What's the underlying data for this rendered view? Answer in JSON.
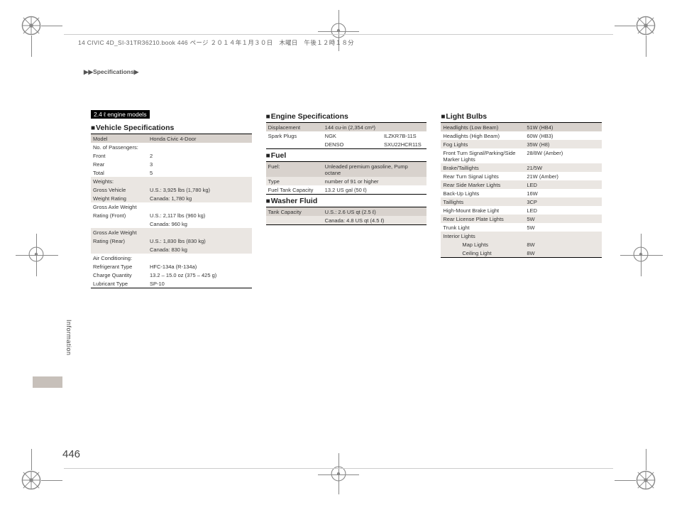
{
  "meta": {
    "bookline": "14 CIVIC 4D_SI-31TR36210.book  446 ページ  ２０１４年１月３０日　木曜日　午後１２時１８分",
    "breadcrumb": "▶▶Specifications▶",
    "page_number": "446",
    "side_label": "Information"
  },
  "col1": {
    "badge": "2.4 ℓ engine models",
    "title": "Vehicle Specifications",
    "rows": [
      {
        "shade": "header",
        "c": [
          "Model",
          "Honda Civic 4-Door"
        ]
      },
      {
        "shade": "",
        "c": [
          "No. of Passengers:",
          ""
        ]
      },
      {
        "shade": "",
        "c": [
          "Front",
          "2"
        ]
      },
      {
        "shade": "",
        "c": [
          "Rear",
          "3"
        ]
      },
      {
        "shade": "",
        "c": [
          "Total",
          "5"
        ]
      },
      {
        "shade": "shade",
        "c": [
          "Weights:",
          ""
        ]
      },
      {
        "shade": "shade",
        "c": [
          "Gross Vehicle",
          "U.S.: 3,925 lbs (1,780 kg)"
        ]
      },
      {
        "shade": "shade",
        "c": [
          "Weight Rating",
          "Canada: 1,780 kg"
        ]
      },
      {
        "shade": "",
        "c": [
          "Gross Axle Weight",
          ""
        ]
      },
      {
        "shade": "",
        "c": [
          "Rating (Front)",
          "U.S.: 2,117 lbs (960 kg)"
        ]
      },
      {
        "shade": "",
        "c": [
          "",
          "Canada: 960 kg"
        ]
      },
      {
        "shade": "shade",
        "c": [
          "Gross Axle Weight",
          ""
        ]
      },
      {
        "shade": "shade",
        "c": [
          "Rating (Rear)",
          "U.S.: 1,830 lbs (830 kg)"
        ]
      },
      {
        "shade": "shade",
        "c": [
          "",
          "Canada: 830 kg"
        ]
      },
      {
        "shade": "",
        "c": [
          "Air Conditioning:",
          ""
        ]
      },
      {
        "shade": "",
        "c": [
          "Refrigerant Type",
          "HFC-134a (R-134a)"
        ]
      },
      {
        "shade": "",
        "c": [
          "Charge Quantity",
          "13.2 – 15.0 oz (375 – 425 g)"
        ]
      },
      {
        "shade": "",
        "c": [
          "Lubricant Type",
          "SP-10"
        ]
      }
    ]
  },
  "col2": {
    "s1": {
      "title": "Engine Specifications",
      "rows": [
        {
          "shade": "header",
          "c": [
            "Displacement",
            "144 cu-in (2,354 cm³)",
            ""
          ]
        },
        {
          "shade": "",
          "c": [
            "Spark Plugs",
            "NGK",
            "ILZKR7B-11S"
          ]
        },
        {
          "shade": "",
          "c": [
            "",
            "DENSO",
            "SXU22HCR11S"
          ]
        }
      ]
    },
    "s2": {
      "title": "Fuel",
      "rows": [
        {
          "shade": "header",
          "c": [
            "Fuel:",
            "Unleaded premium gasoline, Pump octane"
          ]
        },
        {
          "shade": "shade",
          "c": [
            "Type",
            "number of 91 or higher"
          ]
        },
        {
          "shade": "",
          "c": [
            "Fuel Tank Capacity",
            "13.2 US gal (50 ℓ)"
          ]
        }
      ]
    },
    "s3": {
      "title": "Washer Fluid",
      "rows": [
        {
          "shade": "header",
          "c": [
            "Tank Capacity",
            "U.S.: 2.6 US qt (2.5 ℓ)"
          ]
        },
        {
          "shade": "shade",
          "c": [
            "",
            "Canada: 4.8 US qt (4.5 ℓ)"
          ]
        }
      ]
    }
  },
  "col3": {
    "title": "Light Bulbs",
    "rows": [
      {
        "shade": "header",
        "c": [
          "Headlights (Low Beam)",
          "51W (HB4)"
        ]
      },
      {
        "shade": "",
        "c": [
          "Headlights (High Beam)",
          "60W (HB3)"
        ]
      },
      {
        "shade": "shade",
        "c": [
          "Fog Lights",
          "35W (H8)"
        ]
      },
      {
        "shade": "",
        "c": [
          "Front Turn Signal/Parking/Side Marker Lights",
          "28/8W (Amber)"
        ]
      },
      {
        "shade": "shade",
        "c": [
          "Brake/Taillights",
          "21/5W"
        ]
      },
      {
        "shade": "",
        "c": [
          "Rear Turn Signal Lights",
          "21W (Amber)"
        ]
      },
      {
        "shade": "shade",
        "c": [
          "Rear Side Marker Lights",
          "LED"
        ]
      },
      {
        "shade": "",
        "c": [
          "Back-Up Lights",
          "16W"
        ]
      },
      {
        "shade": "shade",
        "c": [
          "Taillights",
          "3CP"
        ]
      },
      {
        "shade": "",
        "c": [
          "High-Mount Brake Light",
          "LED"
        ]
      },
      {
        "shade": "shade",
        "c": [
          "Rear License Plate Lights",
          "5W"
        ]
      },
      {
        "shade": "",
        "c": [
          "Trunk Light",
          "5W"
        ]
      },
      {
        "shade": "shade",
        "c": [
          "Interior Lights",
          ""
        ]
      },
      {
        "shade": "shade",
        "c": [
          "Map Lights",
          "8W"
        ],
        "indent": true
      },
      {
        "shade": "shade",
        "c": [
          "Ceiling Light",
          "8W"
        ],
        "indent": true
      }
    ]
  }
}
